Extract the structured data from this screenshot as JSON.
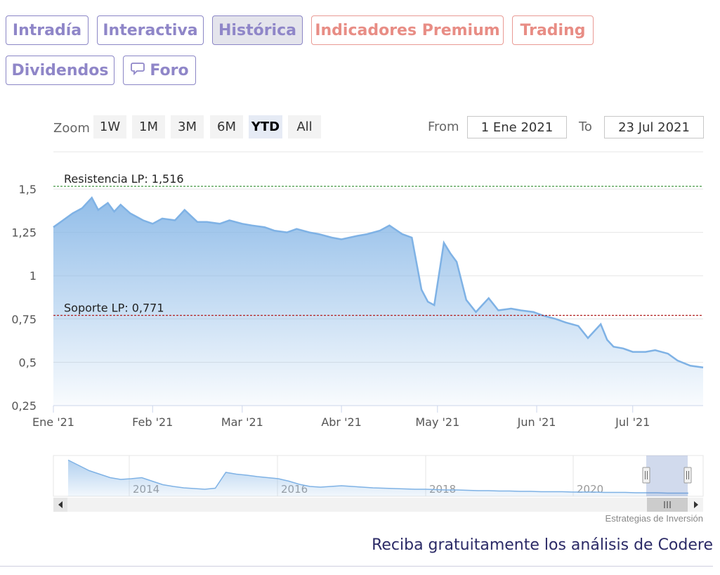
{
  "tabs": [
    {
      "label": "Intradía"
    },
    {
      "label": "Interactiva"
    },
    {
      "label": "Histórica"
    },
    {
      "label": "Indicadores Premium"
    },
    {
      "label": "Trading"
    },
    {
      "label": "Dividendos"
    },
    {
      "label": "Foro"
    }
  ],
  "zoom": {
    "label": "Zoom",
    "buttons": [
      "1W",
      "1M",
      "3M",
      "6M",
      "YTD",
      "All"
    ],
    "selected": "YTD"
  },
  "range": {
    "from_label": "From",
    "from_value": "1 Ene 2021",
    "to_label": "To",
    "to_value": "23 Jul 2021"
  },
  "credits": "Estrategias de Inversión",
  "cta": "Reciba gratuitamente los análisis de Codere",
  "colors": {
    "series": "#7fb2e5",
    "resistance": "#2e8b2e",
    "support": "#b22222",
    "tab_text": "#8f86c8",
    "premium_text": "#e88d85"
  },
  "chart_data": {
    "type": "area",
    "ylim": [
      0.25,
      1.5
    ],
    "y_ticks": [
      0.25,
      0.5,
      0.75,
      1,
      1.25,
      1.5
    ],
    "y_tick_labels": [
      "0,25",
      "0,5",
      "0,75",
      "1",
      "1,25",
      "1,5"
    ],
    "x_tick_labels": [
      "Ene '21",
      "Feb '21",
      "Mar '21",
      "Abr '21",
      "May '21",
      "Jun '21",
      "Jul '21"
    ],
    "x_ticks": [
      "2021-01-01",
      "2021-02-01",
      "2021-03-01",
      "2021-04-01",
      "2021-05-01",
      "2021-06-01",
      "2021-07-01"
    ],
    "x_range": [
      "2021-01-01",
      "2021-07-23"
    ],
    "grid": true,
    "annotations": [
      {
        "label": "Resistencia LP: 1,516",
        "y": 1.516
      },
      {
        "label": "Soporte LP: 0,771",
        "y": 0.771
      }
    ],
    "series": [
      {
        "x": [
          "2021-01-01",
          "2021-01-04",
          "2021-01-07",
          "2021-01-10",
          "2021-01-13",
          "2021-01-15",
          "2021-01-18",
          "2021-01-20",
          "2021-01-22",
          "2021-01-25",
          "2021-01-27",
          "2021-01-29",
          "2021-02-01",
          "2021-02-04",
          "2021-02-08",
          "2021-02-11",
          "2021-02-15",
          "2021-02-18",
          "2021-02-22",
          "2021-02-25",
          "2021-03-01",
          "2021-03-04",
          "2021-03-08",
          "2021-03-11",
          "2021-03-15",
          "2021-03-18",
          "2021-03-22",
          "2021-03-25",
          "2021-03-29",
          "2021-04-01",
          "2021-04-06",
          "2021-04-09",
          "2021-04-13",
          "2021-04-16",
          "2021-04-20",
          "2021-04-23",
          "2021-04-26",
          "2021-04-28",
          "2021-04-30",
          "2021-05-03",
          "2021-05-05",
          "2021-05-07",
          "2021-05-10",
          "2021-05-13",
          "2021-05-17",
          "2021-05-20",
          "2021-05-24",
          "2021-05-27",
          "2021-05-31",
          "2021-06-03",
          "2021-06-07",
          "2021-06-10",
          "2021-06-14",
          "2021-06-17",
          "2021-06-21",
          "2021-06-23",
          "2021-06-25",
          "2021-06-28",
          "2021-07-01",
          "2021-07-05",
          "2021-07-08",
          "2021-07-12",
          "2021-07-15",
          "2021-07-19",
          "2021-07-23"
        ],
        "y": [
          1.28,
          1.32,
          1.36,
          1.39,
          1.45,
          1.38,
          1.42,
          1.37,
          1.41,
          1.36,
          1.34,
          1.32,
          1.3,
          1.33,
          1.32,
          1.38,
          1.31,
          1.31,
          1.3,
          1.32,
          1.3,
          1.29,
          1.28,
          1.26,
          1.25,
          1.27,
          1.25,
          1.24,
          1.22,
          1.21,
          1.23,
          1.24,
          1.26,
          1.29,
          1.24,
          1.22,
          0.92,
          0.85,
          0.83,
          1.19,
          1.13,
          1.08,
          0.86,
          0.79,
          0.87,
          0.8,
          0.81,
          0.8,
          0.79,
          0.77,
          0.75,
          0.73,
          0.71,
          0.64,
          0.72,
          0.63,
          0.59,
          0.58,
          0.56,
          0.56,
          0.57,
          0.55,
          0.51,
          0.48,
          0.47
        ]
      }
    ]
  },
  "navigator": {
    "year_labels": [
      "2014",
      "2016",
      "2018",
      "2020"
    ],
    "values": [
      1.45,
      1.3,
      1.15,
      1.05,
      0.95,
      0.9,
      0.92,
      0.95,
      0.85,
      0.75,
      0.7,
      0.66,
      0.64,
      0.62,
      0.65,
      1.1,
      1.05,
      1.02,
      0.98,
      0.95,
      0.92,
      0.85,
      0.76,
      0.7,
      0.68,
      0.7,
      0.72,
      0.7,
      0.68,
      0.66,
      0.65,
      0.64,
      0.63,
      0.62,
      0.62,
      0.61,
      0.6,
      0.6,
      0.59,
      0.58,
      0.58,
      0.57,
      0.57,
      0.56,
      0.56,
      0.55,
      0.55,
      0.55,
      0.54,
      0.54,
      0.54,
      0.53,
      0.53,
      0.53,
      0.52,
      0.52,
      0.52,
      0.51,
      0.51,
      0.51
    ]
  }
}
